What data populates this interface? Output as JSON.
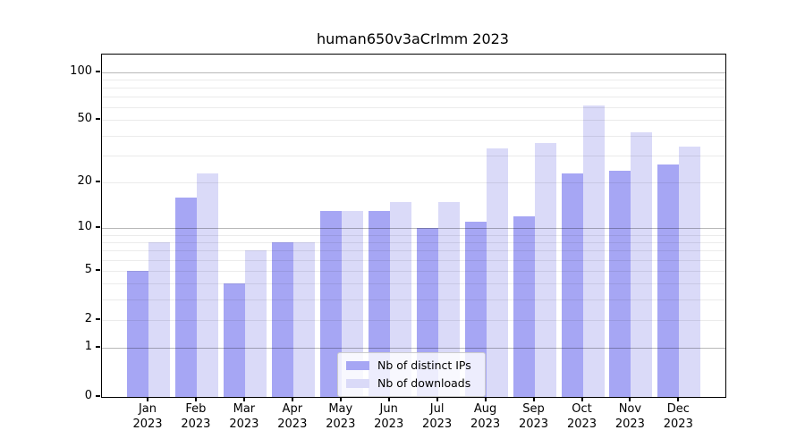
{
  "figure": {
    "background": "#ffffff"
  },
  "chart_data": {
    "type": "bar",
    "title": "human650v3aCrlmm 2023",
    "year": "2023",
    "months": [
      "Jan",
      "Feb",
      "Mar",
      "Apr",
      "May",
      "Jun",
      "Jul",
      "Aug",
      "Sep",
      "Oct",
      "Nov",
      "Dec"
    ],
    "series": [
      {
        "name": "Nb of distinct IPs",
        "color": "#a6a6f4",
        "values": [
          5,
          16,
          4,
          8,
          13,
          13,
          10,
          11,
          12,
          23,
          24,
          26
        ]
      },
      {
        "name": "Nb of downloads",
        "color": "#dadaf8",
        "values": [
          8,
          23,
          7,
          8,
          13,
          15,
          15,
          33,
          36,
          62,
          42,
          34
        ]
      }
    ],
    "xlabel": "",
    "ylabel": "",
    "yscale": "log1p",
    "ylim": [
      0,
      130
    ],
    "yticks": [
      0,
      1,
      2,
      5,
      10,
      20,
      50,
      100
    ],
    "major_gridlines": [
      1,
      10,
      100
    ],
    "minor_gridlines": [
      2,
      3,
      4,
      5,
      6,
      7,
      8,
      9,
      20,
      30,
      40,
      50,
      60,
      70,
      80,
      90
    ],
    "grid": "on",
    "legend_position": "lower center",
    "axis_color": "#000000"
  }
}
